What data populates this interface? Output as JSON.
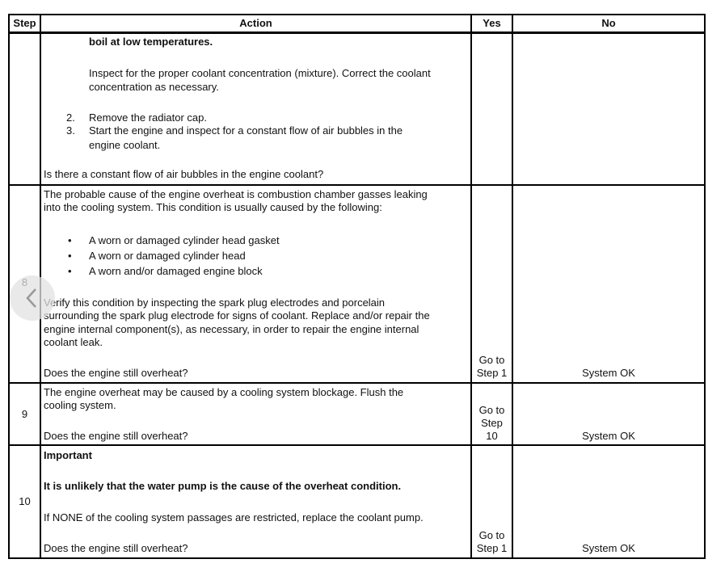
{
  "header": {
    "step": "Step",
    "action": "Action",
    "yes": "Yes",
    "no": "No"
  },
  "rows": [
    {
      "step": "",
      "lines": [
        "boil at low temperatures.",
        "Inspect for the proper coolant concentration (mixture). Correct the coolant",
        "concentration as necessary.",
        "2.",
        "Remove the radiator cap.",
        "3.",
        "Start the engine and inspect for a constant flow of air bubbles in the",
        "engine coolant.",
        "Is there a constant flow of air bubbles in the engine coolant?"
      ],
      "yes": [],
      "no": ""
    },
    {
      "step": "8",
      "lines": [
        "The probable cause of the engine overheat is combustion chamber gasses leaking",
        "into the cooling system. This condition is usually caused by the following:",
        "A worn or damaged cylinder head gasket",
        "A worn or damaged cylinder head",
        "A worn and/or damaged engine block",
        "Verify this condition by inspecting the spark plug electrodes and porcelain",
        "surrounding the spark plug electrode for signs of coolant. Replace and/or repair the",
        "engine internal component(s), as necessary, in order to repair the engine internal",
        "coolant leak.",
        "Does the engine still overheat?"
      ],
      "yes": [
        "Go to",
        "Step 1"
      ],
      "no": "System OK"
    },
    {
      "step": "9",
      "lines": [
        "The engine overheat may be caused by a cooling system blockage. Flush the",
        "cooling system.",
        "Does the engine still overheat?"
      ],
      "yes": [
        "Go to",
        "Step",
        "10"
      ],
      "no": "System OK"
    },
    {
      "step": "10",
      "lines": [
        "Important",
        "It is unlikely that the water pump is the cause of the overheat condition.",
        "If NONE of the cooling system passages are restricted, replace the coolant pump.",
        "Does the engine still overheat?"
      ],
      "yes": [
        "Go to",
        "Step 1"
      ],
      "no": "System OK"
    }
  ],
  "nav": {
    "icon": "chevron-left-icon"
  }
}
